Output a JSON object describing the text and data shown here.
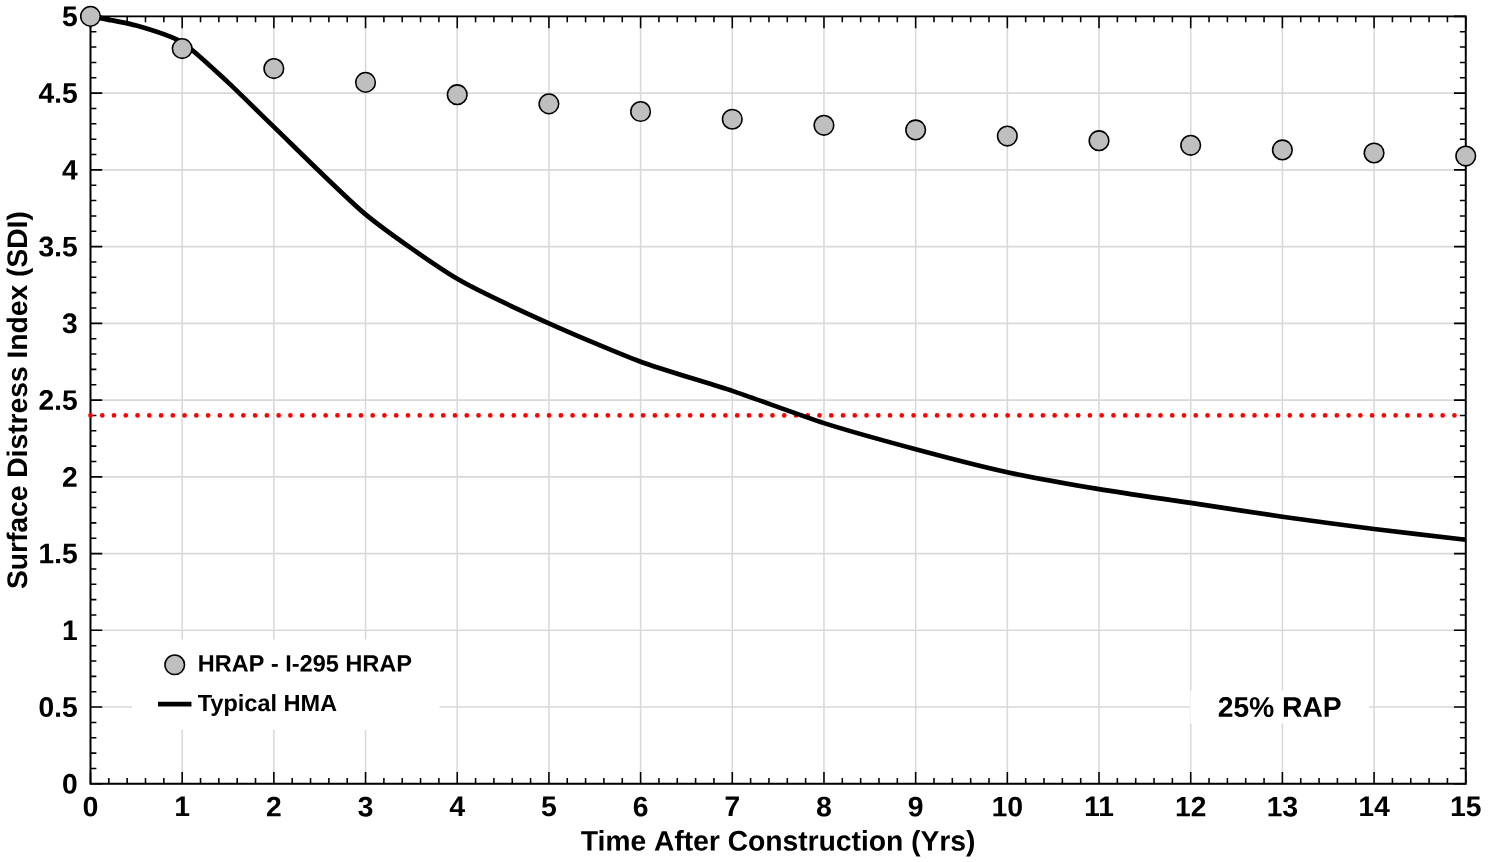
{
  "chart_data": {
    "type": "line",
    "xlabel": "Time After Construction (Yrs)",
    "ylabel": "Surface Distress Index (SDI)",
    "x": [
      0,
      1,
      2,
      3,
      4,
      5,
      6,
      7,
      8,
      9,
      10,
      11,
      12,
      13,
      14,
      15
    ],
    "series": [
      {
        "name": "HRAP - I-295 HRAP",
        "type": "scatter",
        "marker": "circle",
        "color": "#bfbfbf",
        "values": [
          5,
          4.79,
          4.66,
          4.57,
          4.49,
          4.43,
          4.38,
          4.33,
          4.29,
          4.26,
          4.22,
          4.19,
          4.16,
          4.13,
          4.11,
          4.09
        ]
      },
      {
        "name": "Typical HMA",
        "line_style": "solid",
        "color": "#000000",
        "x": [
          0,
          0.5,
          1,
          1.5,
          2,
          3,
          4,
          5,
          6,
          7,
          8,
          9,
          10,
          11,
          12,
          13,
          14,
          15
        ],
        "values": [
          5,
          4.94,
          4.83,
          4.57,
          4.28,
          3.71,
          3.29,
          3.0,
          2.75,
          2.56,
          2.35,
          2.18,
          2.03,
          1.92,
          1.83,
          1.74,
          1.66,
          1.59
        ]
      }
    ],
    "xlim": [
      0,
      15
    ],
    "xticks": [
      0,
      1,
      2,
      3,
      4,
      5,
      6,
      7,
      8,
      9,
      10,
      11,
      12,
      13,
      14,
      15
    ],
    "ylim": [
      0,
      5
    ],
    "yticks": [
      0,
      0.5,
      1,
      1.5,
      2,
      2.5,
      3,
      3.5,
      4,
      4.5,
      5
    ],
    "ref_lines": [
      {
        "axis": "y",
        "value": 2.4,
        "color": "#ff0000",
        "line_style": "dotted"
      }
    ],
    "annotations": [
      "25% RAP"
    ],
    "grid": true,
    "legend": "bottom left"
  }
}
